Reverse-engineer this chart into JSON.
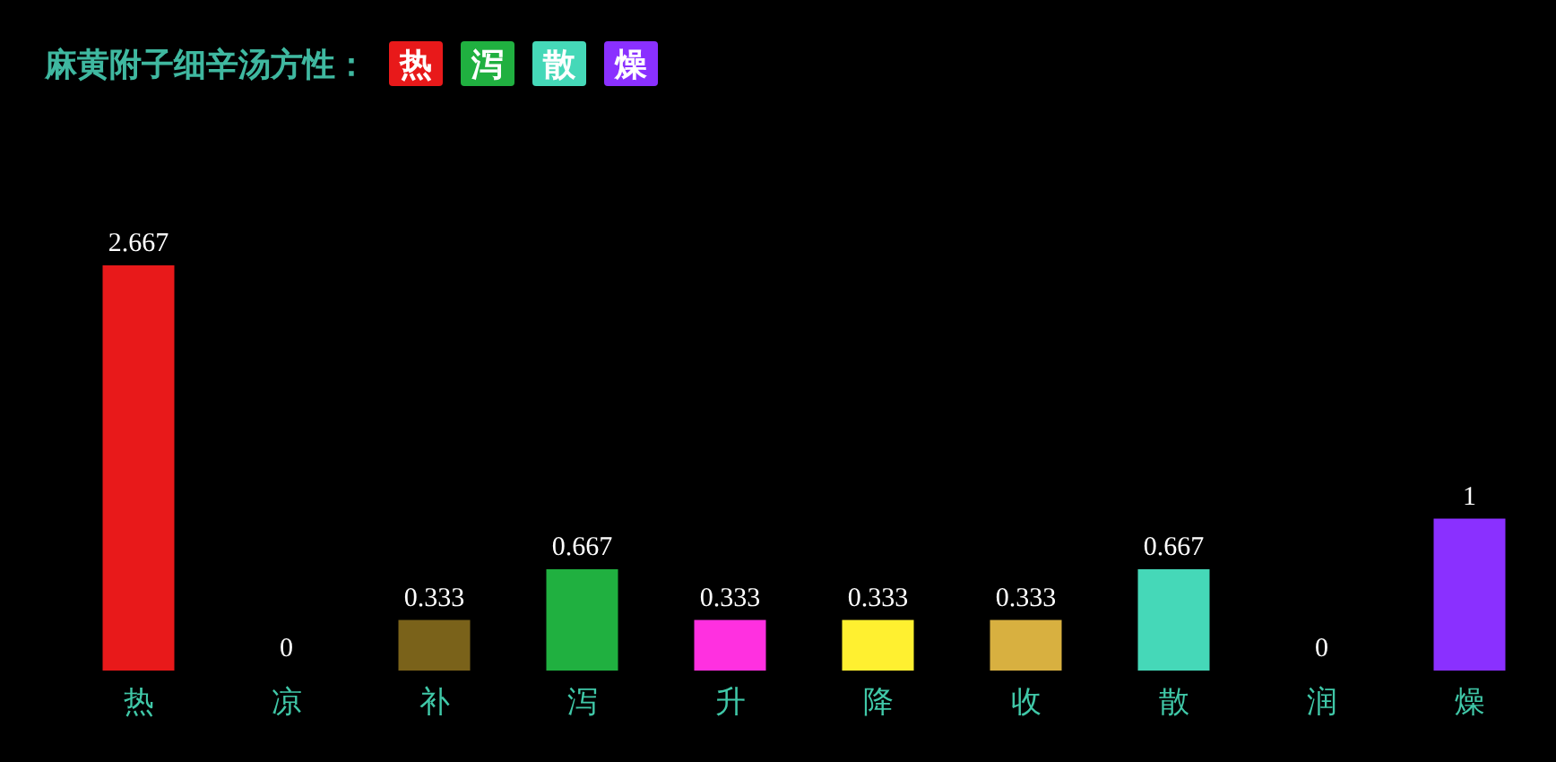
{
  "chart_data": {
    "type": "bar",
    "title": "麻黄附子细辛汤方性：",
    "categories": [
      "热",
      "凉",
      "补",
      "泻",
      "升",
      "降",
      "收",
      "散",
      "润",
      "燥"
    ],
    "values": [
      2.667,
      0,
      0.333,
      0.667,
      0.333,
      0.333,
      0.333,
      0.667,
      0,
      1
    ],
    "colors": [
      "#e8191a",
      "#808080",
      "#7a621a",
      "#20b040",
      "#ff30e0",
      "#fff030",
      "#d8b040",
      "#45d8b8",
      "#808080",
      "#8a30ff"
    ],
    "data_labels": true,
    "annotations": [
      "热",
      "泻",
      "散",
      "燥"
    ]
  }
}
